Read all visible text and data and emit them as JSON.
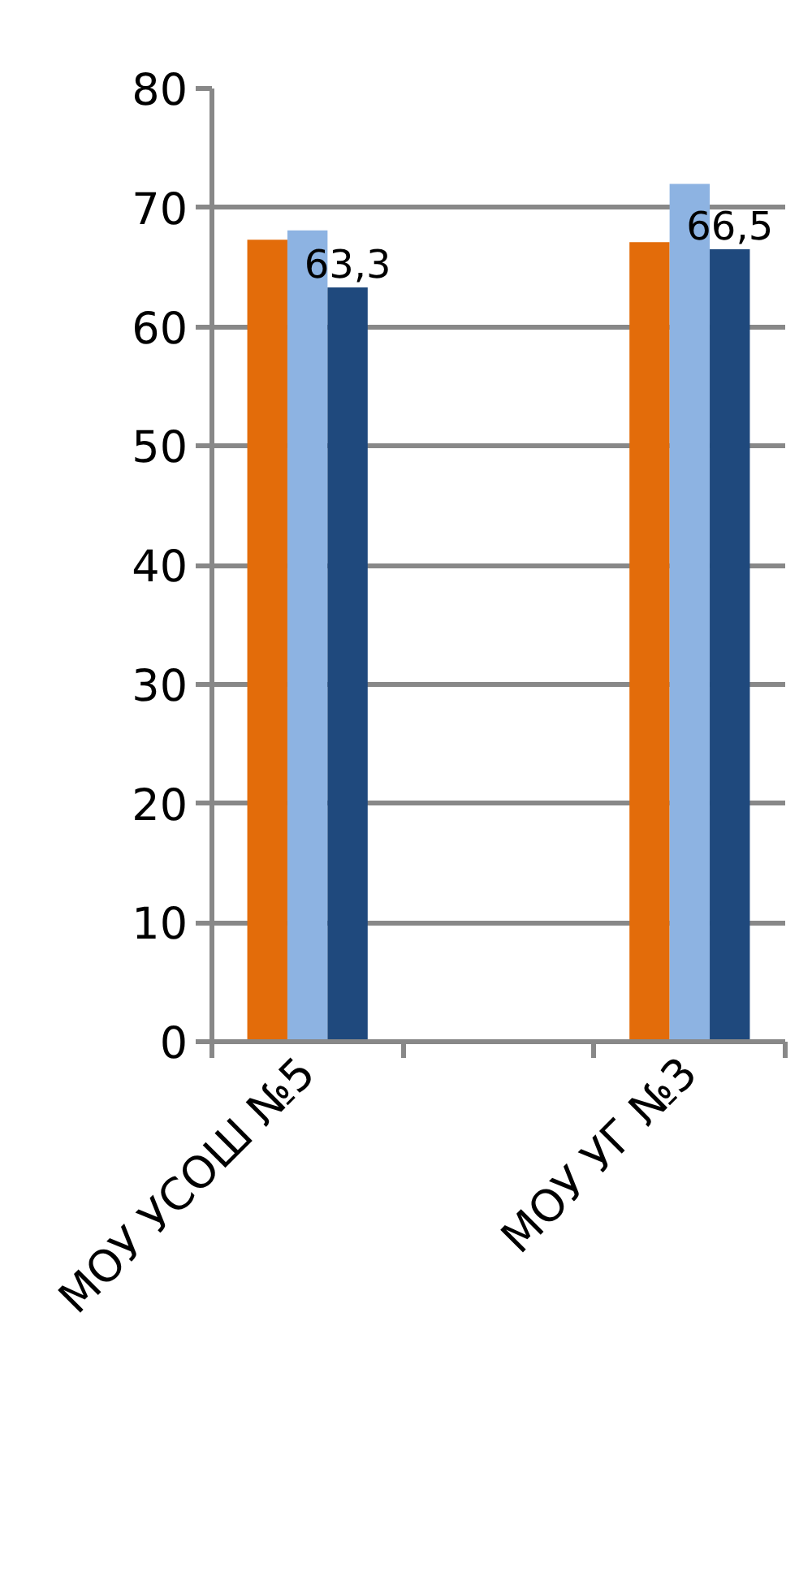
{
  "chart_data": {
    "type": "bar",
    "categories": [
      "МОУ УСОШ №5",
      null,
      "МОУ УГ №3"
    ],
    "series": [
      {
        "color": "#e36c0a",
        "values": [
          67.3,
          null,
          67.1
        ]
      },
      {
        "color": "#8db3e2",
        "values": [
          68.1,
          null,
          72.0
        ]
      },
      {
        "color": "#1f497d",
        "values": [
          63.3,
          null,
          66.5
        ],
        "value_labels": [
          "63,3",
          null,
          "66,5"
        ]
      }
    ],
    "ylim": [
      0,
      80
    ],
    "yticks": [
      0,
      10,
      20,
      30,
      40,
      50,
      60,
      70,
      80
    ],
    "grid": "y"
  }
}
